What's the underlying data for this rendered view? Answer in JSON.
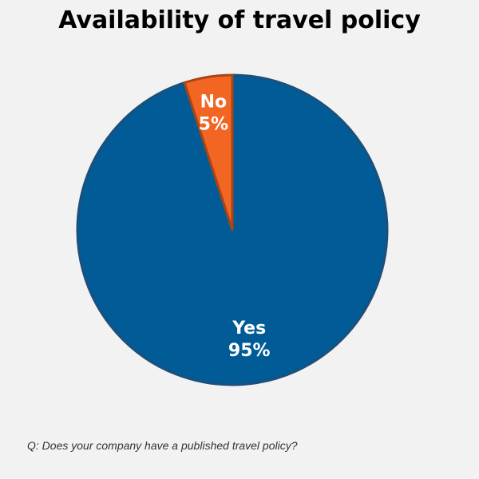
{
  "chart_data": {
    "type": "pie",
    "title": "Availability of travel policy",
    "categories": [
      "Yes",
      "No"
    ],
    "values": [
      95,
      5
    ],
    "labels": [
      "95%",
      "5%"
    ],
    "colors": [
      "#005b96",
      "#f26522"
    ],
    "edge_colors": [
      "#1d4f7a",
      "#a94514"
    ]
  },
  "footnote": "Q: Does your company have a published travel policy?"
}
